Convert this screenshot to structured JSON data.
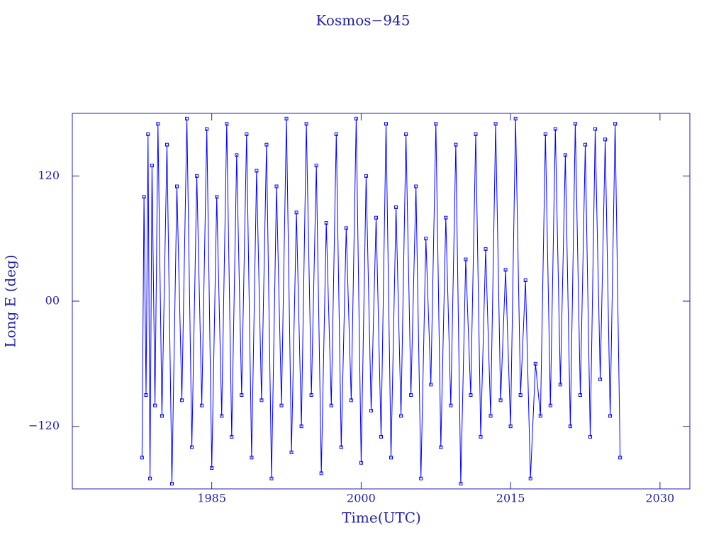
{
  "chart_data": {
    "type": "line",
    "title": "Kosmos−945",
    "x_label": "Time(UTC)",
    "y_label": "Long E (deg)",
    "xlim": [
      1971,
      2033
    ],
    "ylim": [
      -180,
      180
    ],
    "xticks": [
      1985,
      2000,
      2015,
      2030
    ],
    "yticks": [
      {
        "value": -120,
        "label": "−120"
      },
      {
        "value": 0,
        "label": "00"
      },
      120
    ],
    "grid": false,
    "series": [
      {
        "color": "#0000ff",
        "x": [
          1978.0,
          1978.2,
          1978.4,
          1978.6,
          1978.8,
          1979.0,
          1979.3,
          1979.6,
          1980.0,
          1980.5,
          1981.0,
          1981.5,
          1982.0,
          1982.5,
          1983.0,
          1983.5,
          1984.0,
          1984.5,
          1985.0,
          1985.5,
          1986.0,
          1986.5,
          1987.0,
          1987.5,
          1988.0,
          1988.5,
          1989.0,
          1989.5,
          1990.0,
          1990.5,
          1991.0,
          1991.5,
          1992.0,
          1992.5,
          1993.0,
          1993.5,
          1994.0,
          1994.5,
          1995.0,
          1995.5,
          1996.0,
          1996.5,
          1997.0,
          1997.5,
          1998.0,
          1998.5,
          1999.0,
          1999.5,
          2000.0,
          2000.5,
          2001.0,
          2001.5,
          2002.0,
          2002.5,
          2003.0,
          2003.5,
          2004.0,
          2004.5,
          2005.0,
          2005.5,
          2006.0,
          2006.5,
          2007.0,
          2007.5,
          2008.0,
          2008.5,
          2009.0,
          2009.5,
          2010.0,
          2010.5,
          2011.0,
          2011.5,
          2012.0,
          2012.5,
          2013.0,
          2013.5,
          2014.0,
          2014.5,
          2015.0,
          2015.5,
          2016.0,
          2016.5,
          2017.0,
          2017.5,
          2018.0,
          2018.5,
          2019.0,
          2019.5,
          2020.0,
          2020.5,
          2021.0,
          2021.5,
          2022.0,
          2022.5,
          2023.0,
          2023.5,
          2024.0,
          2024.5,
          2025.0,
          2025.5,
          2026.0
        ],
        "values": [
          -150,
          100,
          -90,
          160,
          -170,
          130,
          -100,
          170,
          -110,
          150,
          -175,
          110,
          -95,
          175,
          -140,
          120,
          -100,
          165,
          -160,
          100,
          -110,
          170,
          -130,
          140,
          -90,
          160,
          -150,
          125,
          -95,
          150,
          -170,
          110,
          -100,
          175,
          -145,
          85,
          -120,
          170,
          -90,
          130,
          -165,
          75,
          -100,
          160,
          -140,
          70,
          -95,
          175,
          -155,
          120,
          -105,
          80,
          -130,
          170,
          -150,
          90,
          -110,
          160,
          -90,
          110,
          -170,
          60,
          -80,
          170,
          -140,
          80,
          -100,
          150,
          -175,
          40,
          -90,
          160,
          -130,
          50,
          -110,
          170,
          -95,
          30,
          -120,
          175,
          -90,
          20,
          -170,
          -60,
          -110,
          160,
          -100,
          165,
          -80,
          140,
          -120,
          170,
          -90,
          150,
          -130,
          165,
          -75,
          155,
          -110,
          170,
          -150
        ]
      }
    ]
  }
}
